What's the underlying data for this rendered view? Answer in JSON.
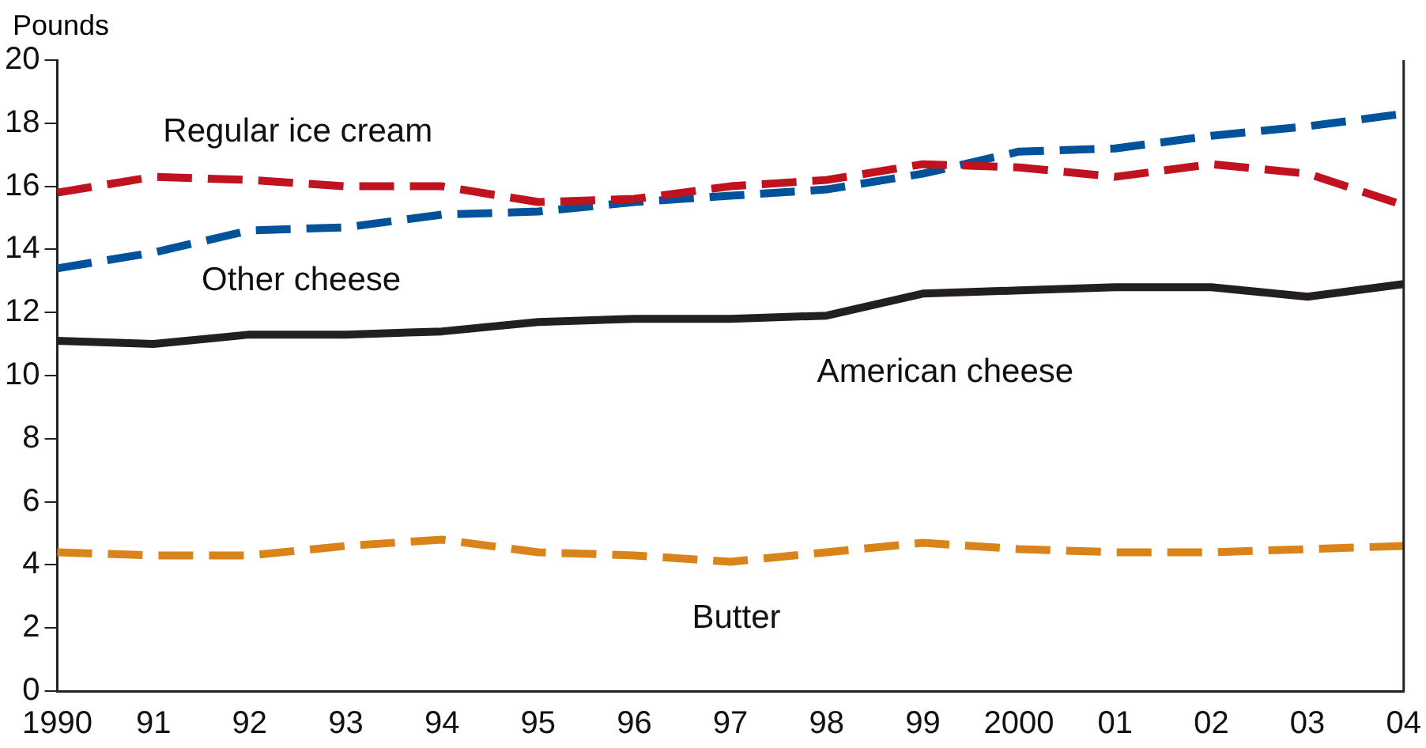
{
  "chart_data": {
    "type": "line",
    "ylabel": "Pounds",
    "categories": [
      "1990",
      "91",
      "92",
      "93",
      "94",
      "95",
      "96",
      "97",
      "98",
      "99",
      "2000",
      "01",
      "02",
      "03",
      "04"
    ],
    "ylim": [
      0,
      20
    ],
    "yticks": [
      0,
      2,
      4,
      6,
      8,
      10,
      12,
      14,
      16,
      18,
      20
    ],
    "grid": false,
    "legend": false,
    "marker": "none",
    "series": [
      {
        "name": "Regular ice cream",
        "color": "#c0121f",
        "line_style": "dashed",
        "values": [
          15.8,
          16.3,
          16.2,
          16.0,
          16.0,
          15.5,
          15.6,
          16.0,
          16.2,
          16.7,
          16.6,
          16.3,
          16.7,
          16.4,
          15.4
        ]
      },
      {
        "name": "Other cheese",
        "color": "#00529b",
        "line_style": "dashed",
        "values": [
          13.4,
          13.9,
          14.6,
          14.7,
          15.1,
          15.2,
          15.5,
          15.7,
          15.9,
          16.4,
          17.1,
          17.2,
          17.6,
          17.9,
          18.3
        ]
      },
      {
        "name": "American cheese",
        "color": "#231f20",
        "line_style": "solid",
        "values": [
          11.1,
          11.0,
          11.3,
          11.3,
          11.4,
          11.7,
          11.8,
          11.8,
          11.9,
          12.6,
          12.7,
          12.8,
          12.8,
          12.5,
          12.9
        ]
      },
      {
        "name": "Butter",
        "color": "#d9841a",
        "line_style": "dashed",
        "values": [
          4.4,
          4.3,
          4.3,
          4.6,
          4.8,
          4.4,
          4.3,
          4.1,
          4.4,
          4.7,
          4.5,
          4.4,
          4.4,
          4.5,
          4.6
        ]
      }
    ]
  }
}
